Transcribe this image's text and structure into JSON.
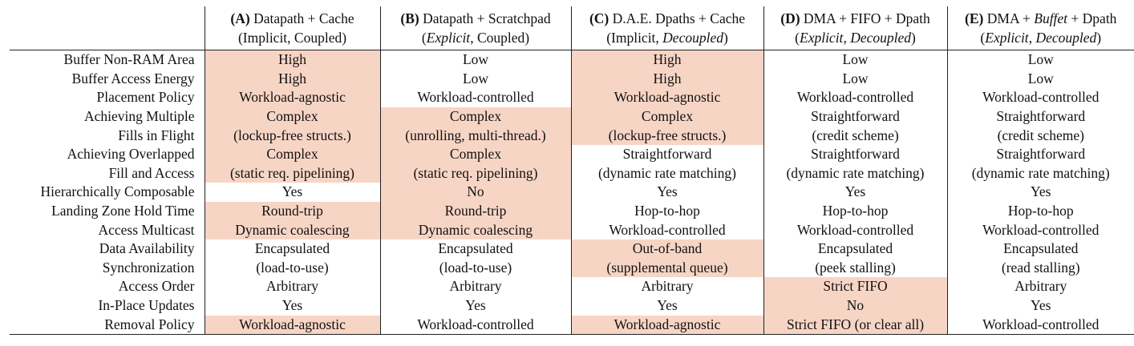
{
  "columns": [
    {
      "id": "A",
      "letter": "(A)",
      "title": "Datapath + Cache",
      "sub_a": "Implicit",
      "sub_b": "Coupled",
      "sub_a_italic": false,
      "sub_b_italic": false,
      "title_italic_word": ""
    },
    {
      "id": "B",
      "letter": "(B)",
      "title": "Datapath + Scratchpad",
      "sub_a": "Explicit",
      "sub_b": "Coupled",
      "sub_a_italic": true,
      "sub_b_italic": false,
      "title_italic_word": ""
    },
    {
      "id": "C",
      "letter": "(C)",
      "title": "D.A.E. Dpaths + Cache",
      "sub_a": "Implicit",
      "sub_b": "Decoupled",
      "sub_a_italic": false,
      "sub_b_italic": true,
      "title_italic_word": ""
    },
    {
      "id": "D",
      "letter": "(D)",
      "title": "DMA + FIFO + Dpath",
      "sub_a": "Explicit",
      "sub_b": "Decoupled",
      "sub_a_italic": true,
      "sub_b_italic": true,
      "title_italic_word": ""
    },
    {
      "id": "E",
      "letter": "(E)",
      "title_pre": "DMA + ",
      "title_italic": "Buffet",
      "title_post": " + Dpath",
      "sub_a": "Explicit",
      "sub_b": "Decoupled",
      "sub_a_italic": true,
      "sub_b_italic": true
    }
  ],
  "rows": [
    {
      "label": [
        "Buffer Non-RAM Area"
      ],
      "cells": [
        {
          "lines": [
            "High"
          ],
          "hl": true
        },
        {
          "lines": [
            "Low"
          ],
          "hl": false
        },
        {
          "lines": [
            "High"
          ],
          "hl": true
        },
        {
          "lines": [
            "Low"
          ],
          "hl": false
        },
        {
          "lines": [
            "Low"
          ],
          "hl": false
        }
      ]
    },
    {
      "label": [
        "Buffer Access Energy"
      ],
      "cells": [
        {
          "lines": [
            "High"
          ],
          "hl": true
        },
        {
          "lines": [
            "Low"
          ],
          "hl": false
        },
        {
          "lines": [
            "High"
          ],
          "hl": true
        },
        {
          "lines": [
            "Low"
          ],
          "hl": false
        },
        {
          "lines": [
            "Low"
          ],
          "hl": false
        }
      ]
    },
    {
      "label": [
        "Placement Policy"
      ],
      "cells": [
        {
          "lines": [
            "Workload-agnostic"
          ],
          "hl": true
        },
        {
          "lines": [
            "Workload-controlled"
          ],
          "hl": false
        },
        {
          "lines": [
            "Workload-agnostic"
          ],
          "hl": true
        },
        {
          "lines": [
            "Workload-controlled"
          ],
          "hl": false
        },
        {
          "lines": [
            "Workload-controlled"
          ],
          "hl": false
        }
      ]
    },
    {
      "label": [
        "Achieving Multiple",
        "Fills in Flight"
      ],
      "cells": [
        {
          "lines": [
            "Complex",
            "(lockup-free structs.)"
          ],
          "hl": true
        },
        {
          "lines": [
            "Complex",
            "(unrolling, multi-thread.)"
          ],
          "hl": true
        },
        {
          "lines": [
            "Complex",
            "(lockup-free structs.)"
          ],
          "hl": true
        },
        {
          "lines": [
            "Straightforward",
            "(credit scheme)"
          ],
          "hl": false
        },
        {
          "lines": [
            "Straightforward",
            "(credit scheme)"
          ],
          "hl": false
        }
      ]
    },
    {
      "label": [
        "Achieving Overlapped",
        "Fill and Access"
      ],
      "cells": [
        {
          "lines": [
            "Complex",
            "(static req. pipelining)"
          ],
          "hl": true
        },
        {
          "lines": [
            "Complex",
            "(static req. pipelining)"
          ],
          "hl": true
        },
        {
          "lines": [
            "Straightforward",
            "(dynamic rate matching)"
          ],
          "hl": false
        },
        {
          "lines": [
            "Straightforward",
            "(dynamic rate matching)"
          ],
          "hl": false
        },
        {
          "lines": [
            "Straightforward",
            "(dynamic rate matching)"
          ],
          "hl": false
        }
      ]
    },
    {
      "label": [
        "Hierarchically Composable"
      ],
      "cells": [
        {
          "lines": [
            "Yes"
          ],
          "hl": false
        },
        {
          "lines": [
            "No"
          ],
          "hl": true
        },
        {
          "lines": [
            "Yes"
          ],
          "hl": false
        },
        {
          "lines": [
            "Yes"
          ],
          "hl": false
        },
        {
          "lines": [
            "Yes"
          ],
          "hl": false
        }
      ]
    },
    {
      "label": [
        "Landing Zone Hold Time"
      ],
      "cells": [
        {
          "lines": [
            "Round-trip"
          ],
          "hl": true
        },
        {
          "lines": [
            "Round-trip"
          ],
          "hl": true
        },
        {
          "lines": [
            "Hop-to-hop"
          ],
          "hl": false
        },
        {
          "lines": [
            "Hop-to-hop"
          ],
          "hl": false
        },
        {
          "lines": [
            "Hop-to-hop"
          ],
          "hl": false
        }
      ]
    },
    {
      "label": [
        "Access Multicast"
      ],
      "cells": [
        {
          "lines": [
            "Dynamic coalescing"
          ],
          "hl": true
        },
        {
          "lines": [
            "Dynamic coalescing"
          ],
          "hl": true
        },
        {
          "lines": [
            "Workload-controlled"
          ],
          "hl": false
        },
        {
          "lines": [
            "Workload-controlled"
          ],
          "hl": false
        },
        {
          "lines": [
            "Workload-controlled"
          ],
          "hl": false
        }
      ]
    },
    {
      "label": [
        "Data Availability",
        "Synchronization"
      ],
      "cells": [
        {
          "lines": [
            "Encapsulated",
            "(load-to-use)"
          ],
          "hl": false
        },
        {
          "lines": [
            "Encapsulated",
            "(load-to-use)"
          ],
          "hl": false
        },
        {
          "lines": [
            "Out-of-band",
            "(supplemental queue)"
          ],
          "hl": true
        },
        {
          "lines": [
            "Encapsulated",
            "(peek stalling)"
          ],
          "hl": false
        },
        {
          "lines": [
            "Encapsulated",
            "(read stalling)"
          ],
          "hl": false
        }
      ]
    },
    {
      "label": [
        "Access Order"
      ],
      "cells": [
        {
          "lines": [
            "Arbitrary"
          ],
          "hl": false
        },
        {
          "lines": [
            "Arbitrary"
          ],
          "hl": false
        },
        {
          "lines": [
            "Arbitrary"
          ],
          "hl": false
        },
        {
          "lines": [
            "Strict FIFO"
          ],
          "hl": true
        },
        {
          "lines": [
            "Arbitrary"
          ],
          "hl": false
        }
      ]
    },
    {
      "label": [
        "In-Place Updates"
      ],
      "cells": [
        {
          "lines": [
            "Yes"
          ],
          "hl": false
        },
        {
          "lines": [
            "Yes"
          ],
          "hl": false
        },
        {
          "lines": [
            "Yes"
          ],
          "hl": false
        },
        {
          "lines": [
            "No"
          ],
          "hl": true
        },
        {
          "lines": [
            "Yes"
          ],
          "hl": false
        }
      ]
    },
    {
      "label": [
        "Removal Policy"
      ],
      "cells": [
        {
          "lines": [
            "Workload-agnostic"
          ],
          "hl": true
        },
        {
          "lines": [
            "Workload-controlled"
          ],
          "hl": false
        },
        {
          "lines": [
            "Workload-agnostic"
          ],
          "hl": true
        },
        {
          "lines": [
            "Strict FIFO (or clear all)"
          ],
          "hl": true
        },
        {
          "lines": [
            "Workload-controlled"
          ],
          "hl": false
        }
      ]
    }
  ],
  "colors": {
    "highlight": "#f7d5c5",
    "rule": "#222222",
    "text": "#111111"
  }
}
